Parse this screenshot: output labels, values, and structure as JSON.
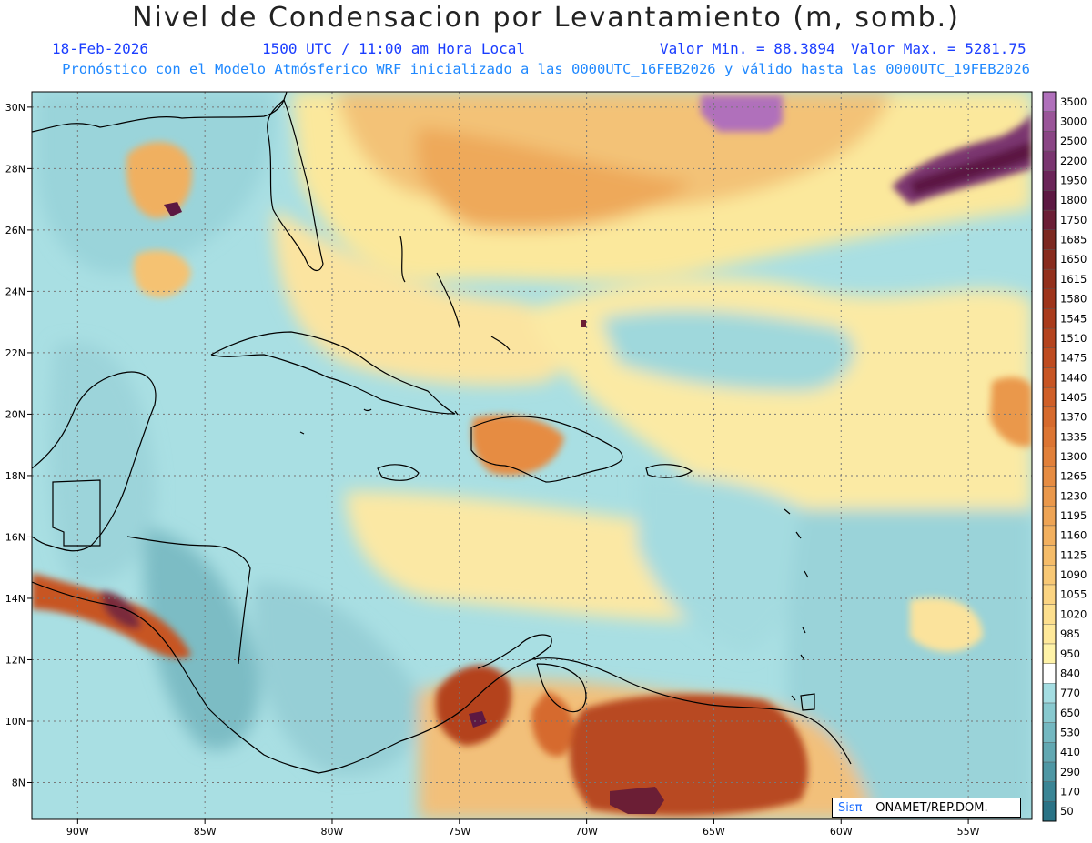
{
  "header": {
    "title": "Nivel de Condensacion por Levantamiento (m, somb.)",
    "date": "18-Feb-2026",
    "time": "1500 UTC / 11:00 am Hora Local",
    "min_value": "Valor Min. = 88.3894",
    "max_value": "Valor Max. = 5281.75",
    "forecast_info": "Pronóstico con el Modelo Atmósferico WRF inicializado a las 0000UTC_16FEB2026 y válido hasta las  0000UTC_19FEB2026"
  },
  "map": {
    "lat_labels": [
      "30N",
      "28N",
      "26N",
      "24N",
      "22N",
      "20N",
      "18N",
      "16N",
      "14N",
      "12N",
      "10N",
      "8N"
    ],
    "lat_values": [
      30,
      28,
      26,
      24,
      22,
      20,
      18,
      16,
      14,
      12,
      10,
      8
    ],
    "lon_labels": [
      "90W",
      "85W",
      "80W",
      "75W",
      "70W",
      "65W",
      "60W",
      "55W"
    ],
    "lon_values": [
      -90,
      -85,
      -80,
      -75,
      -70,
      -65,
      -60,
      -55
    ],
    "lat_range": [
      6.8,
      30.5
    ],
    "lon_range": [
      -91.8,
      -52.5
    ],
    "grid": "dotted",
    "credit_logo": "Sisπ",
    "credit_text": "– ONAMET/REP.DOM."
  },
  "legend": {
    "levels": [
      "50",
      "170",
      "290",
      "410",
      "530",
      "650",
      "770",
      "840",
      "950",
      "985",
      "1020",
      "1055",
      "1090",
      "1125",
      "1160",
      "1195",
      "1230",
      "1265",
      "1300",
      "1335",
      "1370",
      "1405",
      "1440",
      "1475",
      "1510",
      "1545",
      "1580",
      "1615",
      "1650",
      "1685",
      "1750",
      "1800",
      "1950",
      "2200",
      "2500",
      "3000",
      "3500"
    ],
    "colors": [
      "#2a7386",
      "#3a8595",
      "#4e97a4",
      "#62a8b2",
      "#74b8c1",
      "#88c9cf",
      "#a4dde2",
      "#ffffff",
      "#fff3a8",
      "#ffe99a",
      "#fddf8e",
      "#fbd482",
      "#f8c875",
      "#f5bc69",
      "#f2b05f",
      "#eea455",
      "#ea984b",
      "#e68c42",
      "#e1803a",
      "#dc7533",
      "#d66a2d",
      "#cf5f28",
      "#c75524",
      "#be4b20",
      "#b4431e",
      "#a93b1c",
      "#9e341b",
      "#93301c",
      "#882b1d",
      "#7c2820",
      "#6b1e35",
      "#5c1842",
      "#6a2458",
      "#7a3570",
      "#8a4585",
      "#9a5599",
      "#b070bb"
    ]
  }
}
